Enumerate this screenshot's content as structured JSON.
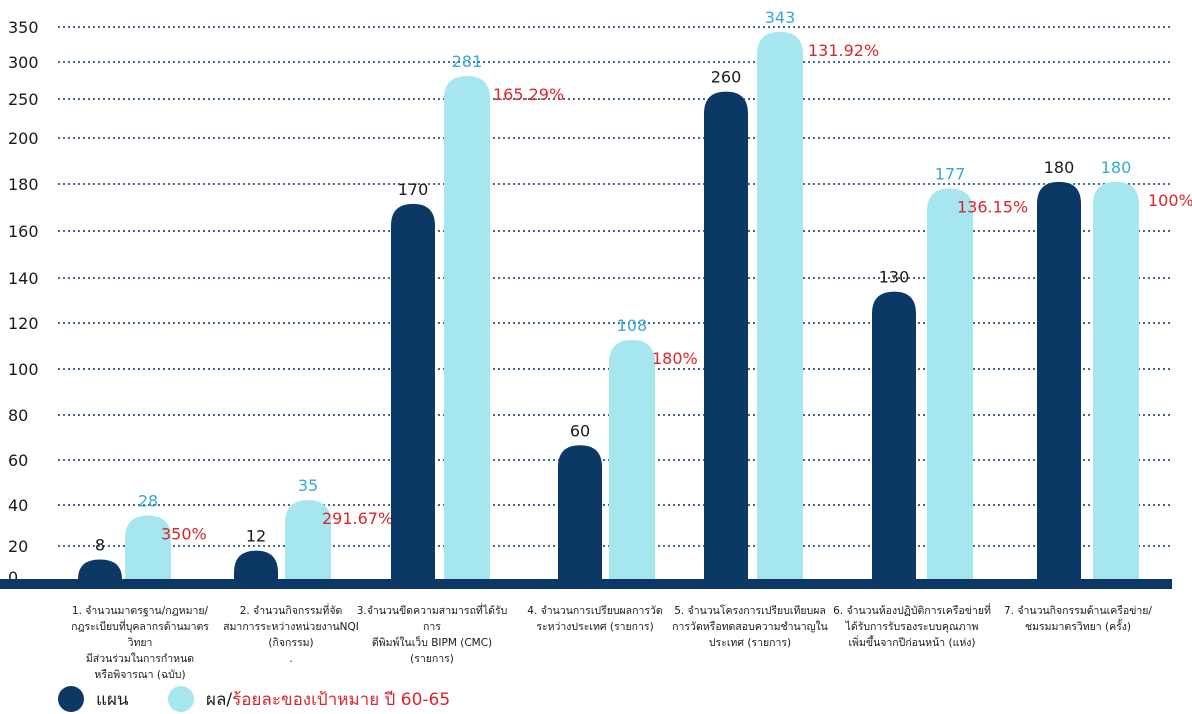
{
  "chart_data": {
    "type": "bar",
    "y_ticks": [
      0,
      20,
      40,
      60,
      80,
      100,
      120,
      140,
      160,
      180,
      200,
      250,
      300,
      350
    ],
    "ylim": [
      0,
      350
    ],
    "grid": true,
    "categories": [
      "1. จำนวนมาตรฐาน/กฎหมาย/กฎระเบียบที่บุคลากรด้านมาตรวิทยามีส่วนร่วมในการกำหนดหรือพิจารณา (ฉบับ)",
      "2. จำนวนกิจกรรมที่จัดสมาการระหว่างหน่วยงานNQI (กิจกรรม)",
      "3.จำนวนขีดความสามารถที่ได้รับการตีพิมพ์ในเว็บ BIPM (CMC) (รายการ)",
      "4. จำนวนการเปรียบผลการวัดระหว่างประเทศ (รายการ)",
      "5. จำนวนโครงการเปรียบเทียบผลการวัดหรือทดสอบความชำนาญในประเทศ (รายการ)",
      "6. จำนวนห้องปฏิบัติการเครือข่ายที่ได้รับการรับรองระบบคุณภาพเพิ่มขึ้นจากปีก่อนหน้า (แห่ง)",
      "7. จำนวนกิจกรรมด้านเครือข่าย/ชมรมมาตรวิทยา (ครั้ง)"
    ],
    "series": [
      {
        "name": "แผน",
        "values": [
          8,
          12,
          170,
          60,
          260,
          130,
          180
        ]
      },
      {
        "name": "ผล/ร้อยละของเป้าหมาย ปี 60-65",
        "values": [
          28,
          35,
          281,
          108,
          343,
          177,
          180
        ]
      }
    ],
    "percent_labels": [
      "350%",
      "291.67%",
      "165.29%",
      "180%",
      "131.92%",
      "136.15%",
      "100%"
    ],
    "colors": {
      "plan": "#0c3866",
      "result": "#a6e6ee",
      "result_label": "#35a9d9",
      "percent": "#d9262b",
      "baseline": "#0c3866"
    },
    "legend_position": "bottom-left"
  },
  "category_lines": [
    [
      "1. จำนวนมาตรฐาน/กฎหมาย/",
      "กฎระเบียบที่บุคลากรด้านมาตรวิทยา",
      "มีส่วนร่วมในการกำหนด",
      "หรือพิจารณา (ฉบับ)"
    ],
    [
      "2. จำนวนกิจกรรมที่จัด",
      "สมาการระหว่างหน่วยงานNQI",
      "(กิจกรรม)",
      "."
    ],
    [
      "3.จำนวนขีดความสามารถที่ได้รับการ",
      "ตีพิมพ์ในเว็บ BIPM (CMC) (รายการ)"
    ],
    [
      "4. จำนวนการเปรียบผลการวัด",
      "ระหว่างประเทศ (รายการ)"
    ],
    [
      "5. จำนวนโครงการเปรียบเทียบผล",
      "การวัดหรือทดสอบความชำนาญใน",
      "ประเทศ (รายการ)"
    ],
    [
      "6. จำนวนห้องปฏิบัติการเครือข่ายที่",
      "ได้รับการรับรองระบบคุณภาพ",
      "เพิ่มขึ้นจากปีก่อนหน้า (แห่ง)"
    ],
    [
      "7. จำนวนกิจกรรมด้านเครือข่าย/",
      "ชมรมมาตรวิทยา (ครั้ง)"
    ]
  ],
  "legend": {
    "plan": "แผน",
    "result_prefix": "ผล/",
    "result_suffix": "ร้อยละของเป้าหมาย ปี 60-65"
  }
}
